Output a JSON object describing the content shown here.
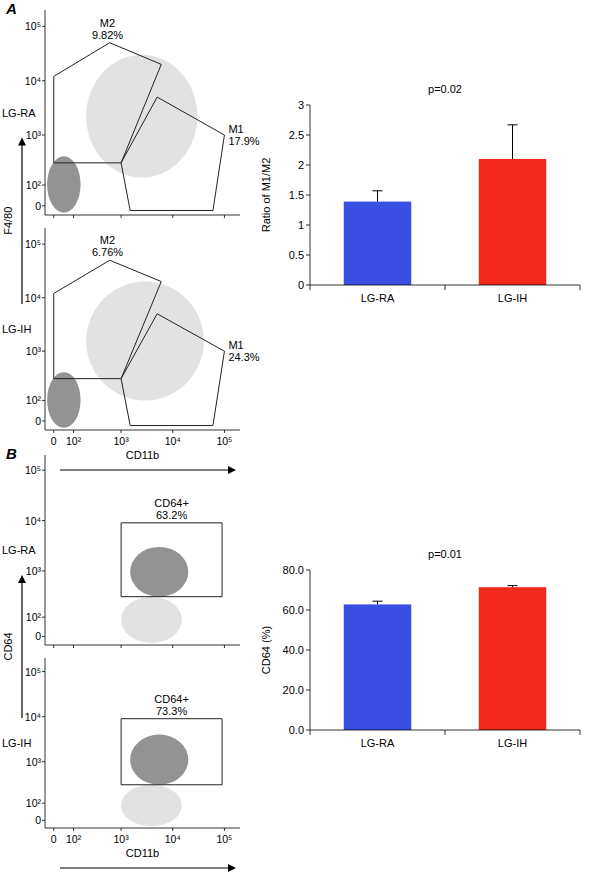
{
  "chart_data": [
    {
      "type": "dotplot",
      "panel": "A",
      "title": "LG-RA",
      "x_label": "CD11b",
      "y_label": "F4/80",
      "tick_labels": "y",
      "xlim": [
        -40,
        200000
      ],
      "ylim": [
        -40,
        200000
      ],
      "xticks": [
        0,
        100,
        1000,
        10000,
        100000
      ],
      "yticks": [
        0,
        {
          "value": 100,
          "label": "10²"
        },
        {
          "value": 1000,
          "label": "10³"
        },
        {
          "value": 10000,
          "label": "10⁴"
        },
        {
          "value": 100000,
          "label": "10⁵"
        }
      ],
      "clusters": [
        {
          "x": [
            -30,
            150
          ],
          "y": [
            -30,
            400
          ]
        },
        {
          "x": [
            200,
            30000
          ],
          "y": [
            150,
            30000
          ]
        }
      ],
      "gates": [
        {
          "name": "M2",
          "value": 9.82,
          "value_label": "9.82%",
          "vertices": [
            [
              0,
              12000
            ],
            [
              600,
              50000
            ],
            [
              6000,
              20000
            ],
            [
              1000,
              300
            ],
            [
              0,
              300
            ]
          ]
        },
        {
          "name": "M1",
          "value": 17.9,
          "value_label": "17.9%",
          "vertices": [
            [
              1000,
              300
            ],
            [
              5000,
              5000
            ],
            [
              100000,
              1000
            ],
            [
              60000,
              -20
            ],
            [
              1500,
              -20
            ]
          ]
        }
      ]
    },
    {
      "type": "dotplot",
      "title": "LG-IH",
      "xlim": [
        -40,
        200000
      ],
      "ylim": [
        -40,
        200000
      ],
      "xticks": [
        0,
        {
          "value": 100,
          "label": "10²"
        },
        {
          "value": 1000,
          "label": "10³"
        },
        {
          "value": 10000,
          "label": "10⁴"
        },
        {
          "value": 100000,
          "label": "10⁵"
        }
      ],
      "yticks": [
        0,
        {
          "value": 100,
          "label": "10²"
        },
        {
          "value": 1000,
          "label": "10³"
        },
        {
          "value": 10000,
          "label": "10⁴"
        },
        {
          "value": 100000,
          "label": "10⁵"
        }
      ],
      "clusters": [
        {
          "x": [
            -30,
            150
          ],
          "y": [
            -30,
            400
          ]
        },
        {
          "x": [
            200,
            40000
          ],
          "y": [
            100,
            20000
          ]
        }
      ],
      "gates": [
        {
          "name": "M2",
          "value": 6.76,
          "value_label": "6.76%",
          "vertices": [
            [
              0,
              12000
            ],
            [
              600,
              50000
            ],
            [
              6000,
              20000
            ],
            [
              1000,
              300
            ],
            [
              0,
              300
            ]
          ]
        },
        {
          "name": "M1",
          "value": 24.3,
          "value_label": "24.3%",
          "vertices": [
            [
              1000,
              300
            ],
            [
              5000,
              5000
            ],
            [
              100000,
              1000
            ],
            [
              60000,
              -20
            ],
            [
              1500,
              -20
            ]
          ]
        }
      ]
    },
    {
      "type": "bar",
      "categories": [
        "LG-RA",
        "LG-IH"
      ],
      "values": [
        1.39,
        2.1
      ],
      "errors": [
        0.18,
        0.57
      ],
      "colors": [
        "#3a4fe2",
        "#f0291c"
      ],
      "ylim": [
        0,
        3
      ],
      "yticks": [
        0,
        0.5,
        1,
        1.5,
        2,
        2.5,
        3
      ],
      "y_label": "Ratio of M1/M2",
      "annotation": "p=0.02"
    },
    {
      "type": "dotplot",
      "panel": "B",
      "title": "LG-RA",
      "x_label": "CD11b",
      "y_label": "CD64",
      "tick_labels": "y",
      "xlim": [
        -40,
        200000
      ],
      "ylim": [
        -40,
        200000
      ],
      "xticks": [
        0,
        100,
        1000,
        10000,
        100000
      ],
      "yticks": [
        0,
        {
          "value": 100,
          "label": "10²"
        },
        {
          "value": 1000,
          "label": "10³"
        },
        {
          "value": 10000,
          "label": "10⁴"
        },
        {
          "value": 100000,
          "label": "10⁵"
        }
      ],
      "clusters": [
        {
          "x": [
            1500,
            20000
          ],
          "y": [
            300,
            3000
          ]
        },
        {
          "x": [
            1000,
            15000
          ],
          "y": [
            -30,
            300
          ]
        }
      ],
      "gates": [
        {
          "name": "CD64+",
          "value": 63.2,
          "value_label": "63.2%",
          "vertices": [
            [
              1000,
              300
            ],
            [
              90000,
              300
            ],
            [
              90000,
              9000
            ],
            [
              1000,
              9000
            ]
          ]
        }
      ]
    },
    {
      "type": "dotplot",
      "title": "LG-IH",
      "xlim": [
        -40,
        200000
      ],
      "ylim": [
        -40,
        200000
      ],
      "xticks": [
        0,
        {
          "value": 100,
          "label": "10²"
        },
        {
          "value": 1000,
          "label": "10³"
        },
        {
          "value": 10000,
          "label": "10⁴"
        },
        {
          "value": 100000,
          "label": "10⁵"
        }
      ],
      "yticks": [
        0,
        {
          "value": 100,
          "label": "10²"
        },
        {
          "value": 1000,
          "label": "10³"
        },
        {
          "value": 10000,
          "label": "10⁴"
        },
        {
          "value": 100000,
          "label": "10⁵"
        }
      ],
      "clusters": [
        {
          "x": [
            1500,
            20000
          ],
          "y": [
            300,
            4000
          ]
        },
        {
          "x": [
            1000,
            15000
          ],
          "y": [
            -30,
            300
          ]
        }
      ],
      "gates": [
        {
          "name": "CD64+",
          "value": 73.3,
          "value_label": "73.3%",
          "vertices": [
            [
              1000,
              300
            ],
            [
              90000,
              300
            ],
            [
              90000,
              9000
            ],
            [
              1000,
              9000
            ]
          ]
        }
      ]
    },
    {
      "type": "bar",
      "categories": [
        "LG-RA",
        "LG-IH"
      ],
      "values": [
        62.8,
        71.4
      ],
      "errors": [
        1.6,
        0.8
      ],
      "colors": [
        "#3a4fe2",
        "#f0291c"
      ],
      "ylim": [
        0,
        80
      ],
      "yticks": [
        {
          "value": 0,
          "label": "0.0"
        },
        {
          "value": 20,
          "label": "20.0"
        },
        {
          "value": 40,
          "label": "40.0"
        },
        {
          "value": 60,
          "label": "60.0"
        },
        {
          "value": 80,
          "label": "80.0"
        }
      ],
      "y_label": "CD64 (%)",
      "annotation": "p=0.01"
    }
  ]
}
